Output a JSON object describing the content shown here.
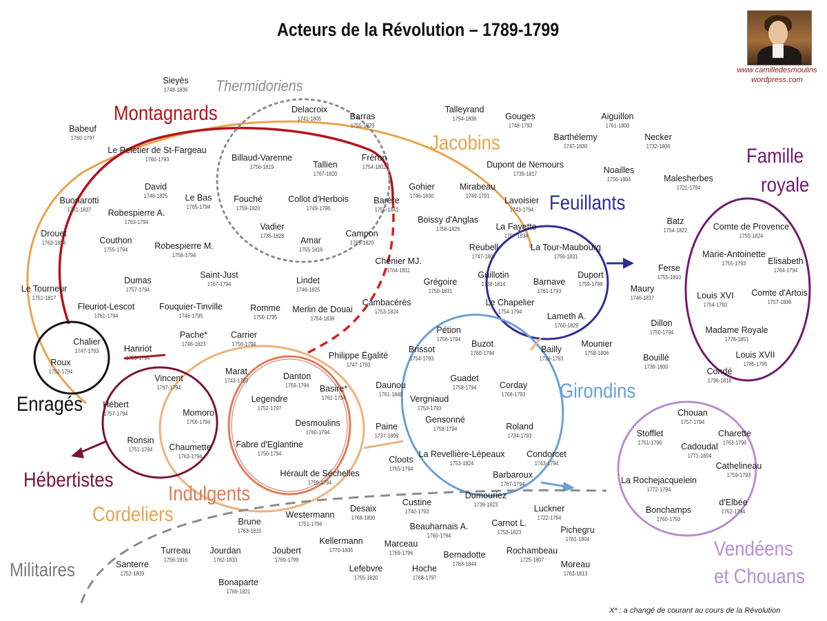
{
  "title": "Acteurs de la Révolution – 1789-1799",
  "website": [
    "www.camilledesmoulins",
    "wordpress.com"
  ],
  "footnote": "X* : a changé de courant au cours de la Révolution",
  "groups": [
    {
      "id": "thermidoriens",
      "label": "Thermidoriens",
      "color": "#8c8c8c"
    },
    {
      "id": "montagnards",
      "label": "Montagnards",
      "color": "#b5121b"
    },
    {
      "id": "jacobins",
      "label": "Jacobins",
      "color": "#e8a34c"
    },
    {
      "id": "feuillants",
      "label": "Feuillants",
      "color": "#2e2f8f"
    },
    {
      "id": "famille",
      "label": [
        "Famille",
        "royale"
      ],
      "color": "#6e1a6e"
    },
    {
      "id": "girondins",
      "label": "Girondins",
      "color": "#6a9fd8"
    },
    {
      "id": "enrages",
      "label": "Enragés",
      "color": "#111111"
    },
    {
      "id": "hebertistes",
      "label": "Hébertistes",
      "color": "#7a1238"
    },
    {
      "id": "indulgents",
      "label": "Indulgents",
      "color": "#e07a55"
    },
    {
      "id": "cordeliers",
      "label": "Cordeliers",
      "color": "#e8a34c"
    },
    {
      "id": "militaires",
      "label": "Militaires",
      "color": "#7a7a7a"
    },
    {
      "id": "vendeens",
      "label": [
        "Vendéens",
        "et Chouans"
      ],
      "color": "#b58fd6"
    }
  ],
  "people": [
    {
      "name": "Sieyès",
      "dates": "1748-1836"
    },
    {
      "name": "Delacroix",
      "dates": "1741-1805"
    },
    {
      "name": "Barras",
      "dates": "1755-1829"
    },
    {
      "name": "Talleyrand",
      "dates": "1754-1838"
    },
    {
      "name": "Gouges",
      "dates": "1748-1793"
    },
    {
      "name": "Aiguillon",
      "dates": "1761-1800"
    },
    {
      "name": "Babeuf",
      "dates": "1760-1797"
    },
    {
      "name": "Barthélemy",
      "dates": "1747-1830"
    },
    {
      "name": "Necker",
      "dates": "1732-1804"
    },
    {
      "name": "Le Peletier de St-Fargeau",
      "dates": "1760-1793"
    },
    {
      "name": "Billaud-Varenne",
      "dates": "1756-1819"
    },
    {
      "name": "Tallien",
      "dates": "1767-1820"
    },
    {
      "name": "Fréron",
      "dates": "1754-1802"
    },
    {
      "name": "Dupont de Nemours",
      "dates": "1739-1817"
    },
    {
      "name": "Noailles",
      "dates": "1756-1804"
    },
    {
      "name": "Malesherbes",
      "dates": "1721-1794"
    },
    {
      "name": "David",
      "dates": "1748-1825"
    },
    {
      "name": "Gohier",
      "dates": "1746-1830"
    },
    {
      "name": "Mirabeau",
      "dates": "1749-1791"
    },
    {
      "name": "Buonarotti",
      "dates": "1761-1837"
    },
    {
      "name": "Le Bas",
      "dates": "1765-1794"
    },
    {
      "name": "Fouché",
      "dates": "1759-1820"
    },
    {
      "name": "Collot d'Herbois",
      "dates": "1749-1796"
    },
    {
      "name": "Barère",
      "dates": "1755-1841"
    },
    {
      "name": "Lavoisier",
      "dates": "1743-1794"
    },
    {
      "name": "Robespierre A.",
      "dates": "1763-1794"
    },
    {
      "name": "Boissy d'Anglas",
      "dates": "1756-1826"
    },
    {
      "name": "Batz",
      "dates": "1754-1822"
    },
    {
      "name": "Comte de Provence",
      "dates": "1755-1824"
    },
    {
      "name": "Drouet",
      "dates": "1763-1824"
    },
    {
      "name": "Couthon",
      "dates": "1755-1794"
    },
    {
      "name": "Vadier",
      "dates": "1736-1828"
    },
    {
      "name": "Campon",
      "dates": "1765-1820"
    },
    {
      "name": "La Fayette",
      "dates": "1757-1834"
    },
    {
      "name": "Robespierre M.",
      "dates": "1758-1794"
    },
    {
      "name": "Amar",
      "dates": "1755-1816"
    },
    {
      "name": "Reubell",
      "dates": "1747-1807"
    },
    {
      "name": "La Tour-Maubourg",
      "dates": "1756-1831"
    },
    {
      "name": "Marie-Antoinette",
      "dates": "1755-1793"
    },
    {
      "name": "Chénier MJ.",
      "dates": "1764-1811"
    },
    {
      "name": "Elisabeth",
      "dates": "1764-1794"
    },
    {
      "name": "Saint-Just",
      "dates": "1767-1794"
    },
    {
      "name": "Guillotin",
      "dates": "1738-1814"
    },
    {
      "name": "Ferse",
      "dates": "1755-1810"
    },
    {
      "name": "Dumas",
      "dates": "1757-1794"
    },
    {
      "name": "Lindet",
      "dates": "1746-1825"
    },
    {
      "name": "Grégoire",
      "dates": "1750-1831"
    },
    {
      "name": "Barnave",
      "dates": "1761-1793"
    },
    {
      "name": "Duport",
      "dates": "1759-1798"
    },
    {
      "name": "Le Tourneur",
      "dates": "1751-1817"
    },
    {
      "name": "Maury",
      "dates": "1746-1817"
    },
    {
      "name": "Louis XVI",
      "dates": "1754-1793"
    },
    {
      "name": "Comte d'Artois",
      "dates": "1757-1836"
    },
    {
      "name": "Fleuriot-Lescot",
      "dates": "1761-1794"
    },
    {
      "name": "Fouquier-Tinville",
      "dates": "1746-1795"
    },
    {
      "name": "Romme",
      "dates": "1750-1795"
    },
    {
      "name": "Cambacérès",
      "dates": "1753-1824"
    },
    {
      "name": "Le Chapelier",
      "dates": "1754-1794"
    },
    {
      "name": "Merlin de Douai",
      "dates": "1754-1838"
    },
    {
      "name": "Lameth A.",
      "dates": "1760-1829"
    },
    {
      "name": "Dillon",
      "dates": "1750-1794"
    },
    {
      "name": "Pétion",
      "dates": "1756-1794"
    },
    {
      "name": "Madame Royale",
      "dates": "1778-1851"
    },
    {
      "name": "Pache*",
      "dates": "1746-1823"
    },
    {
      "name": "Carrier",
      "dates": "1756-1794"
    },
    {
      "name": "Chalier",
      "dates": "1747-1793"
    },
    {
      "name": "Brissot",
      "dates": "1754-1793"
    },
    {
      "name": "Buzot",
      "dates": "1760-1794"
    },
    {
      "name": "Bailly",
      "dates": "1736-1793"
    },
    {
      "name": "Mounier",
      "dates": "1758-1806"
    },
    {
      "name": "Louis XVII",
      "dates": "1785-1795"
    },
    {
      "name": "Hanriot",
      "dates": "1759-1794"
    },
    {
      "name": "Philippe Égalité",
      "dates": "1747-1793"
    },
    {
      "name": "Bouillé",
      "dates": "1739-1800"
    },
    {
      "name": "Roux",
      "dates": "1752-1794"
    },
    {
      "name": "Condé",
      "dates": "1736-1818"
    },
    {
      "name": "Marat",
      "dates": "1743-1793"
    },
    {
      "name": "Danton",
      "dates": "1759-1794"
    },
    {
      "name": "Vincent",
      "dates": "1767-1794"
    },
    {
      "name": "Basire*",
      "dates": "1761-1794"
    },
    {
      "name": "Guadet",
      "dates": "1758-1794"
    },
    {
      "name": "Corday",
      "dates": "1768-1793"
    },
    {
      "name": "Legendre",
      "dates": "1752-1797"
    },
    {
      "name": "Daunou",
      "dates": "1761-1840"
    },
    {
      "name": "Vergniaud",
      "dates": "1753-1793"
    },
    {
      "name": "Hébert",
      "dates": "1757-1794"
    },
    {
      "name": "Momoro",
      "dates": "1756-1794"
    },
    {
      "name": "Desmoulins",
      "dates": "1760-1794"
    },
    {
      "name": "Chouan",
      "dates": "1757-1794"
    },
    {
      "name": "Gensonné",
      "dates": "1758-1794"
    },
    {
      "name": "Stofflet",
      "dates": "1751-1796"
    },
    {
      "name": "Charette",
      "dates": "1763-1796"
    },
    {
      "name": "Paine",
      "dates": "1737-1809"
    },
    {
      "name": "Roland",
      "dates": "1734-1793"
    },
    {
      "name": "Cadoudal",
      "dates": "1771-1804"
    },
    {
      "name": "Ronsin",
      "dates": "1751-1794"
    },
    {
      "name": "Chaumette",
      "dates": "1763-1794"
    },
    {
      "name": "Fabre d'Eglantine",
      "dates": "1750-1794"
    },
    {
      "name": "Cloots",
      "dates": "1755-1794"
    },
    {
      "name": "Condorcet",
      "dates": "1743-1794"
    },
    {
      "name": "La Revellière-Lépeaux",
      "dates": "1753-1824"
    },
    {
      "name": "Cathelineau",
      "dates": "1759-1793"
    },
    {
      "name": "Hérault de Séchelles",
      "dates": "1759-1794"
    },
    {
      "name": "La Rochejacquelein",
      "dates": "1772-1794"
    },
    {
      "name": "Barbaroux",
      "dates": "1767-1794"
    },
    {
      "name": "Dumouriez",
      "dates": "1739-1823"
    },
    {
      "name": "d'Elbée",
      "dates": "1752-1794"
    },
    {
      "name": "Custine",
      "dates": "1740-1793"
    },
    {
      "name": "Desaix",
      "dates": "1768-1800"
    },
    {
      "name": "Luckner",
      "dates": "1722-1794"
    },
    {
      "name": "Westermann",
      "dates": "1751-1794"
    },
    {
      "name": "Carnot L.",
      "dates": "1753-1823"
    },
    {
      "name": "Bonchamps",
      "dates": "1760-1793"
    },
    {
      "name": "Brune",
      "dates": "1763-1815"
    },
    {
      "name": "Beauharnais A.",
      "dates": "1760-1794"
    },
    {
      "name": "Pichegru",
      "dates": "1761-1804"
    },
    {
      "name": "Kellermann",
      "dates": "1770-1835"
    },
    {
      "name": "Marceau",
      "dates": "1769-1796"
    },
    {
      "name": "Turreau",
      "dates": "1756-1816"
    },
    {
      "name": "Jourdan",
      "dates": "1762-1833"
    },
    {
      "name": "Joubert",
      "dates": "1769-1799"
    },
    {
      "name": "Rochambeau",
      "dates": "1725-1807"
    },
    {
      "name": "Bernadotte",
      "dates": "1763-1844"
    },
    {
      "name": "Moreau",
      "dates": "1763-1813"
    },
    {
      "name": "Santerre",
      "dates": "1752-1809"
    },
    {
      "name": "Lefebvre",
      "dates": "1755-1820"
    },
    {
      "name": "Hoche",
      "dates": "1768-1797"
    },
    {
      "name": "Bonaparte",
      "dates": "1769-1821"
    }
  ]
}
